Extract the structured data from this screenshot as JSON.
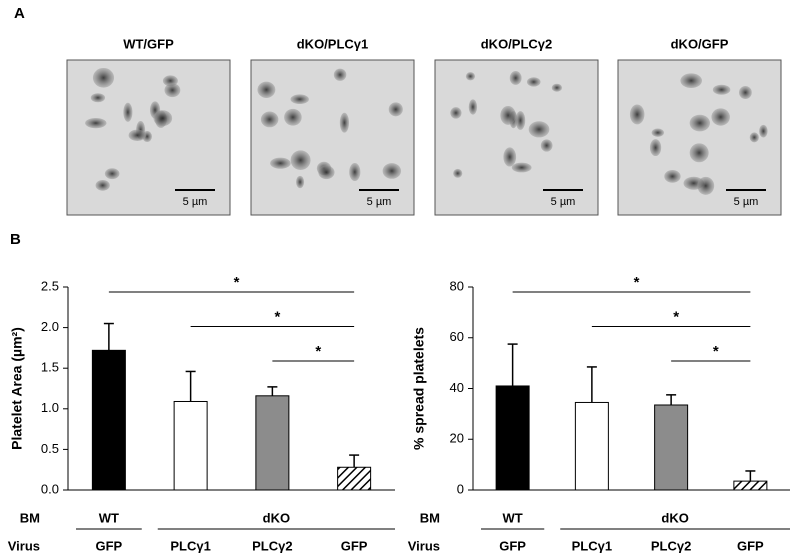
{
  "panels": {
    "a": "A",
    "b": "B"
  },
  "images": [
    {
      "title": "WT/GFP",
      "scale_label": "5 µm"
    },
    {
      "title": "dKO/PLCγ1",
      "scale_label": "5 µm"
    },
    {
      "title": "dKO/PLCγ2",
      "scale_label": "5 µm"
    },
    {
      "title": "dKO/GFP",
      "scale_label": "5 µm"
    }
  ],
  "chart_data": [
    {
      "type": "bar",
      "y_label": "Platelet Area (µm²)",
      "categories": [
        "GFP",
        "PLCγ1",
        "PLCγ2",
        "GFP"
      ],
      "row_labels": [
        "BM",
        "Virus"
      ],
      "group_labels": [
        "WT",
        "dKO"
      ],
      "values": [
        1.72,
        1.09,
        1.16,
        0.28
      ],
      "errors": [
        0.33,
        0.37,
        0.11,
        0.15
      ],
      "colors": [
        "#000000",
        "#ffffff",
        "#8c8c8c",
        "#ffffff"
      ],
      "hatch": [
        false,
        false,
        false,
        true
      ],
      "ylim": [
        0,
        2.5
      ],
      "yticks": [
        {
          "value": 0,
          "label": "0.0"
        },
        0.5,
        {
          "value": 1,
          "label": "1.0"
        },
        1.5,
        {
          "value": 2,
          "label": "2.0"
        },
        2.5
      ],
      "comparisons": [
        {
          "from": 0,
          "to": 3,
          "label": "*"
        },
        {
          "from": 1,
          "to": 3,
          "label": "*"
        },
        {
          "from": 2,
          "to": 3,
          "label": "*"
        }
      ]
    },
    {
      "type": "bar",
      "y_label": "% spread platelets",
      "categories": [
        "GFP",
        "PLCγ1",
        "PLCγ2",
        "GFP"
      ],
      "row_labels": [
        "BM",
        "Virus"
      ],
      "group_labels": [
        "WT",
        "dKO"
      ],
      "values": [
        41,
        34.5,
        33.5,
        3.5
      ],
      "errors": [
        16.5,
        14,
        4,
        4
      ],
      "colors": [
        "#000000",
        "#ffffff",
        "#8c8c8c",
        "#ffffff"
      ],
      "hatch": [
        false,
        false,
        false,
        true
      ],
      "ylim": [
        0,
        80
      ],
      "yticks": [
        0,
        20,
        40,
        60,
        80
      ],
      "comparisons": [
        {
          "from": 0,
          "to": 3,
          "label": "*"
        },
        {
          "from": 1,
          "to": 3,
          "label": "*"
        },
        {
          "from": 2,
          "to": 3,
          "label": "*"
        }
      ]
    }
  ]
}
